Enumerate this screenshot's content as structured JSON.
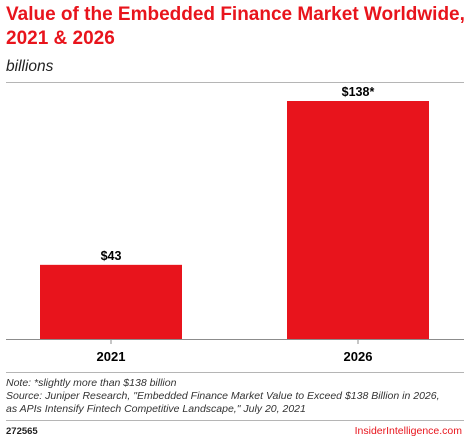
{
  "header": {
    "title": "Value of the Embedded Finance Market Worldwide, 2021 & 2026",
    "subtitle": "billions"
  },
  "chart_data": {
    "type": "bar",
    "title": "Value of the Embedded Finance Market Worldwide, 2021 & 2026",
    "subtitle": "billions",
    "xlabel": "",
    "ylabel": "",
    "categories": [
      "2021",
      "2026"
    ],
    "values": [
      43,
      138
    ],
    "value_labels": [
      "$43",
      "$138*"
    ],
    "ylim": [
      0,
      138
    ],
    "grid": false,
    "legend": "none",
    "color": "#e8141c"
  },
  "footer": {
    "note": "Note: *slightly more than $138 billion",
    "source_line1": "Source: Juniper Research, \"Embedded Finance Market Value to Exceed $138 Billion in 2026,",
    "source_line2": "as APIs Intensify Fintech Competitive Landscape,\" July 20, 2021",
    "chart_id": "272565",
    "brand": "InsiderIntelligence.com"
  }
}
